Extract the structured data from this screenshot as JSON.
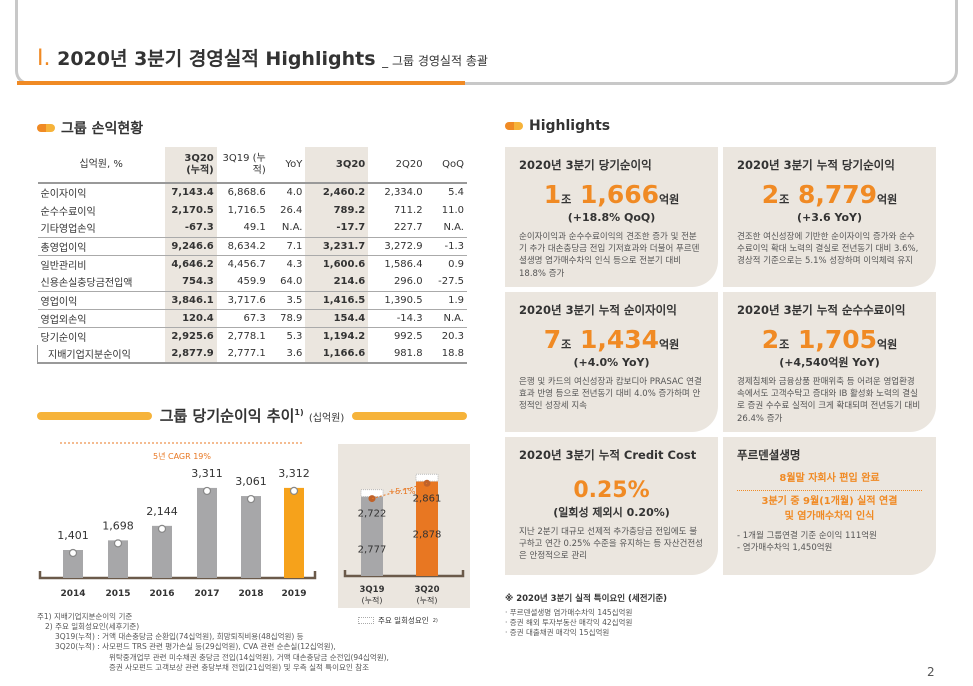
{
  "header": {
    "marker": "I.",
    "title": "2020년 3분기 경영실적 Highlights",
    "subtitle": "_ 그룹 경영실적 총괄"
  },
  "table": {
    "section_title": "그룹 손익현황",
    "columns": [
      "십억원, %",
      "3Q20 (누적)",
      "3Q19 (누적)",
      "YoY",
      "3Q20",
      "2Q20",
      "QoQ"
    ],
    "rows": [
      [
        "순이자이익",
        "7,143.4",
        "6,868.6",
        "4.0",
        "2,460.2",
        "2,334.0",
        "5.4"
      ],
      [
        "순수수료이익",
        "2,170.5",
        "1,716.5",
        "26.4",
        "789.2",
        "711.2",
        "11.0"
      ],
      [
        "기타영업손익",
        "-67.3",
        "49.1",
        "N.A.",
        "-17.7",
        "227.7",
        "N.A."
      ],
      [
        "총영업이익",
        "9,246.6",
        "8,634.2",
        "7.1",
        "3,231.7",
        "3,272.9",
        "-1.3"
      ],
      [
        "일반관리비",
        "4,646.2",
        "4,456.7",
        "4.3",
        "1,600.6",
        "1,586.4",
        "0.9"
      ],
      [
        "신용손실충당금전입액",
        "754.3",
        "459.9",
        "64.0",
        "214.6",
        "296.0",
        "-27.5"
      ],
      [
        "영업이익",
        "3,846.1",
        "3,717.6",
        "3.5",
        "1,416.5",
        "1,390.5",
        "1.9"
      ],
      [
        "영업외손익",
        "120.4",
        "67.3",
        "78.9",
        "154.4",
        "-14.3",
        "N.A."
      ],
      [
        "당기순이익",
        "2,925.6",
        "2,778.1",
        "5.3",
        "1,194.2",
        "992.5",
        "20.3"
      ],
      [
        "지배기업지분순이익",
        "2,877.9",
        "2,777.1",
        "3.6",
        "1,166.6",
        "981.8",
        "18.8"
      ]
    ]
  },
  "chart_data": [
    {
      "type": "bar",
      "title": "그룹 당기순이익 추이",
      "title_sup": "1)",
      "unit": "(십억원)",
      "categories": [
        "2014",
        "2015",
        "2016",
        "2017",
        "2018",
        "2019"
      ],
      "values": [
        1401,
        1698,
        2144,
        3311,
        3061,
        3312
      ],
      "labels": [
        "1,401",
        "1,698",
        "2,144",
        "3,311",
        "3,061",
        "3,312"
      ],
      "annotation": "5년 CAGR 19%",
      "colors": {
        "default": "#a7a7a9",
        "highlight": "#f6a21b"
      }
    },
    {
      "type": "bar",
      "categories": [
        "3Q19 (누적)",
        "3Q20 (누적)"
      ],
      "values": [
        2777,
        2878
      ],
      "recurring": [
        2722,
        2861
      ],
      "labels_total": [
        "2,777",
        "2,878"
      ],
      "labels_recurring": [
        "2,722",
        "2,861"
      ],
      "growth": "+5.1%",
      "legend": "주요 일회성요인",
      "legend_sup": "2)",
      "colors": {
        "3Q19": "#a7a7a9",
        "3Q20": "#e87722"
      }
    }
  ],
  "footnotes": [
    "주1) 지배기업지분순이익 기준",
    "2) 주요 일회성요인(세후기준)",
    "3Q19(누적) : 거액 대손충당금 순환입(74십억원), 희망퇴직비용(48십억원) 등",
    "3Q20(누적) : 사모펀드 TRS 관련 평가손실 등(29십억원), CVA 관련 순손실(12십억원),",
    "위탁중개업무 관련 미수채권 충당금 전입(14십억원), 거액 대손충당금 순전입(94십억원),",
    "증권 사모펀드 고객보상 관련 충당부채 전입(21십억원) 및 우측 실적 특이요인 참조"
  ],
  "highlights": {
    "section_title": "Highlights",
    "cards": [
      {
        "title": "2020년 3분기 당기순이익",
        "n1": "1",
        "u1": "조",
        "n2": "1,666",
        "u2": "억원",
        "change": "(+18.8% QoQ)",
        "desc": "순이자이익과 순수수료이익의 견조한 증가 및 전분기 추가 대손충당금 전입 기저효과와 더불어 푸르덴셜생명 염가매수차익 인식 등으로 전분기 대비 18.8% 증가"
      },
      {
        "title": "2020년 3분기 누적 당기순이익",
        "n1": "2",
        "u1": "조",
        "n2": "8,779",
        "u2": "억원",
        "change": "(+3.6 YoY)",
        "desc": "견조한 여신성장에 기반한 순이자이익 증가와 순수수료이익 확대 노력의 결실로 전년동기 대비 3.6%, 경상적 기준으로는 5.1% 성장하며 이익체력 유지"
      },
      {
        "title": "2020년 3분기 누적 순이자이익",
        "n1": "7",
        "u1": "조",
        "n2": "1,434",
        "u2": "억원",
        "change": "(+4.0% YoY)",
        "desc": "은행 및 카드의 여신성장과 캄보디아 PRASAC 연결 효과 반영 등으로 전년동기 대비 4.0% 증가하며 안정적인 성장세 지속"
      },
      {
        "title": "2020년 3분기 누적 순수수료이익",
        "n1": "2",
        "u1": "조",
        "n2": "1,705",
        "u2": "억원",
        "change": "(+4,540억원 YoY)",
        "desc": "경제침체와 금융상품 판매위축 등 어려운 영업환경 속에서도 고객수탁고 증대와 IB 활성화 노력의 결실로 증권 수수료 실적이 크게 확대되며 전년동기 대비 26.4% 증가"
      },
      {
        "title": "2020년 3분기 누적 Credit Cost",
        "big": "0.25%",
        "change": "(일회성 제외시 0.20%)",
        "desc": "지난 2분기 대규모 선제적 추가충당금 전입에도 불구하고 연간 0.25% 수준을 유지하는 등 자산건전성은 안정적으로 관리"
      },
      {
        "title": "푸르덴셜생명",
        "line1": "8월말 자회사 편입 완료",
        "line2": "3분기 중 9월(1개월) 실적 연결 및 염가매수차익 인식",
        "bullets": [
          "- 1개월 그룹연결 기준 순이익 111억원",
          "- 염가매수차익 1,450억원"
        ]
      }
    ]
  },
  "special": {
    "title": "※ 2020년 3분기 실적 특이요인 (세전기준)",
    "items": [
      "· 푸르덴셜생명 염가매수차익 145십억원",
      "· 증권 해외 투자부동산 매각익 42십억원",
      "· 증권 대출채권 매각익 15십억원"
    ]
  },
  "page_number": "2"
}
